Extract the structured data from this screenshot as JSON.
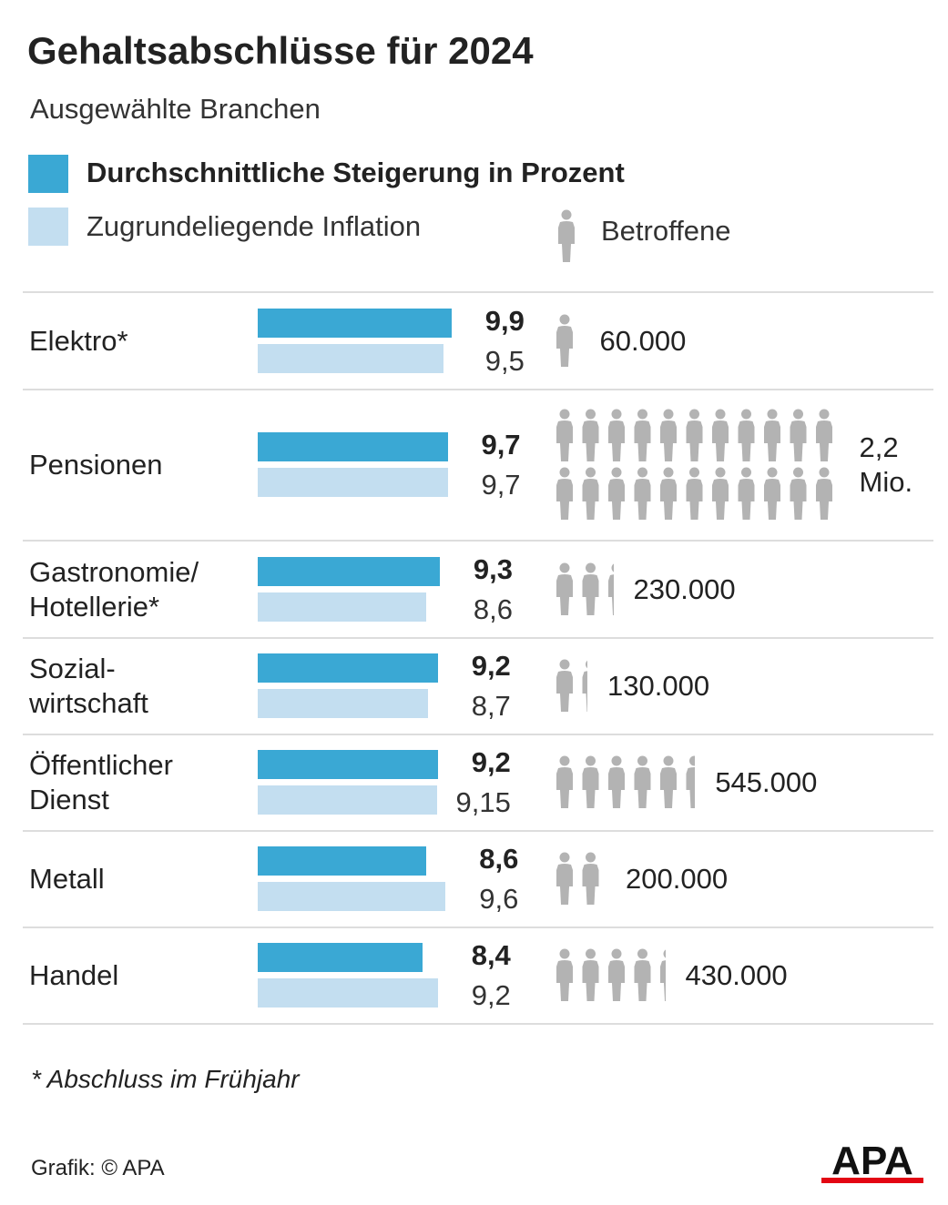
{
  "title": "Gehaltsabschlüsse für 2024",
  "subtitle": "Ausgewählte Branchen",
  "legend": {
    "increase": "Durchschnittliche Steigerung in Prozent",
    "inflation": "Zugrundeliegende Inflation",
    "affected": "Betroffene"
  },
  "colors": {
    "increase": "#3aa8d4",
    "inflation": "#c3def0",
    "person": "#b3b3b3",
    "apa_red": "#e30613"
  },
  "chart_data": {
    "type": "bar",
    "categories": [
      "Elektro*",
      "Pensionen",
      "Gastronomie/\nHotellerie*",
      "Sozial-\nwirtschaft",
      "Öffentlicher\nDienst",
      "Metall",
      "Handel"
    ],
    "series": [
      {
        "name": "Durchschnittliche Steigerung in Prozent",
        "values": [
          9.9,
          9.7,
          9.3,
          9.2,
          9.2,
          8.6,
          8.4
        ],
        "labels": [
          "9,9",
          "9,7",
          "9,3",
          "9,2",
          "9,2",
          "8,6",
          "8,4"
        ]
      },
      {
        "name": "Zugrundeliegende Inflation",
        "values": [
          9.5,
          9.7,
          8.6,
          8.7,
          9.15,
          9.6,
          9.2
        ],
        "labels": [
          "9,5",
          "9,7",
          "8,6",
          "8,7",
          "9,15",
          "9,6",
          "9,2"
        ]
      }
    ],
    "affected": {
      "name": "Betroffene",
      "values": [
        60000,
        2200000,
        230000,
        130000,
        545000,
        200000,
        430000
      ],
      "labels": [
        "60.000",
        "2,2\nMio.",
        "230.000",
        "130.000",
        "545.000",
        "200.000",
        "430.000"
      ],
      "icons": [
        1,
        22,
        2.3,
        1.3,
        5.45,
        2,
        4.3
      ]
    },
    "xlim": [
      0,
      10
    ]
  },
  "footnote": "* Abschluss im Frühjahr",
  "credit": "Grafik: © APA",
  "logo_text": "APA",
  "person_icon": "person-icon"
}
